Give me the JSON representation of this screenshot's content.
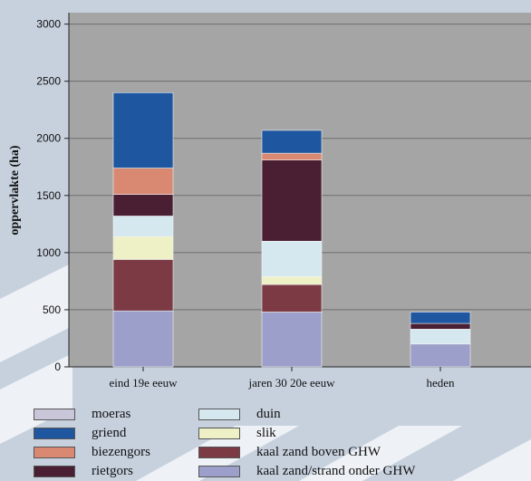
{
  "chart_data": {
    "type": "bar",
    "stacked": true,
    "title": "",
    "xlabel": "",
    "ylabel": "oppervlakte (ha)",
    "ylim": [
      0,
      3100
    ],
    "yticks": [
      0,
      500,
      1000,
      1500,
      2000,
      2500,
      3000
    ],
    "grid": true,
    "categories": [
      "eind 19e eeuw",
      "jaren 30 20e eeuw",
      "heden"
    ],
    "series": [
      {
        "name": "kaal zand/strand onder GHW",
        "color": "#9c9fc9",
        "values": [
          490,
          480,
          200
        ]
      },
      {
        "name": "kaal zand boven GHW",
        "color": "#7b3a44",
        "values": [
          450,
          240,
          0
        ]
      },
      {
        "name": "slik",
        "color": "#eef0c6",
        "values": [
          200,
          70,
          0
        ]
      },
      {
        "name": "duin",
        "color": "#d6e8ef",
        "values": [
          180,
          310,
          130
        ]
      },
      {
        "name": "rietgors",
        "color": "#4a1f34",
        "values": [
          190,
          710,
          50
        ]
      },
      {
        "name": "biezengors",
        "color": "#d98872",
        "values": [
          230,
          60,
          0
        ]
      },
      {
        "name": "griend",
        "color": "#1e56a0",
        "values": [
          660,
          200,
          100
        ]
      },
      {
        "name": "moeras",
        "color": "#c9c6d9",
        "values": [
          0,
          0,
          0
        ]
      }
    ],
    "legend": {
      "placement": "bottom",
      "left_column": [
        "moeras",
        "griend",
        "biezengors",
        "rietgors"
      ],
      "right_column": [
        "duin",
        "slik",
        "kaal zand boven GHW",
        "kaal zand/strand onder GHW"
      ]
    }
  },
  "colors": {
    "plot_background": "#a5a5a5",
    "gridline": "#6e6e6e",
    "page_background": "#c9d3e0"
  }
}
